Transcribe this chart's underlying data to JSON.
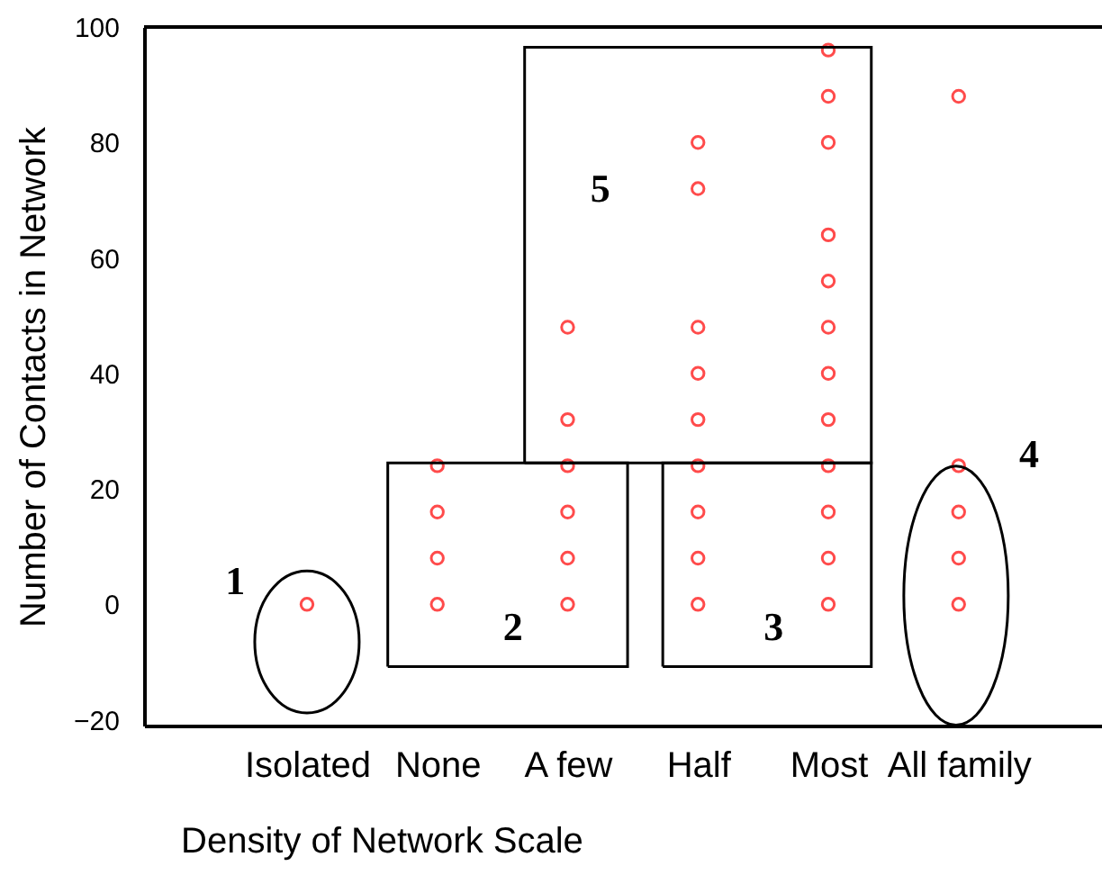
{
  "chart_data": {
    "type": "scatter",
    "xlabel": "Density of Network Scale",
    "ylabel": "Number of Contacts in Network",
    "categories": [
      "Isolated",
      "None",
      "A few",
      "Half",
      "Most",
      "All family"
    ],
    "series": [
      {
        "color": "#ff0000",
        "x": [
          "Isolated",
          "None",
          "None",
          "None",
          "None",
          "A few",
          "A few",
          "A few",
          "A few",
          "A few",
          "A few",
          "Half",
          "Half",
          "Half",
          "Half",
          "Half",
          "Half",
          "Half",
          "Half",
          "Half",
          "Most",
          "Most",
          "Most",
          "Most",
          "Most",
          "Most",
          "Most",
          "Most",
          "Most",
          "Most",
          "Most",
          "Most",
          "All family",
          "All family",
          "All family",
          "All family",
          "All family"
        ],
        "values": [
          0,
          0,
          8,
          16,
          24,
          0,
          8,
          16,
          24,
          32,
          48,
          0,
          8,
          16,
          24,
          32,
          40,
          48,
          72,
          80,
          0,
          8,
          16,
          24,
          32,
          40,
          48,
          56,
          64,
          80,
          88,
          96,
          0,
          8,
          16,
          24,
          88
        ]
      }
    ],
    "ylim": [
      -21,
      100
    ],
    "yticks": [
      -20,
      0,
      20,
      40,
      60,
      80,
      100
    ],
    "grid": false,
    "marker": "circle",
    "annotations": [
      "1",
      "2",
      "3",
      "4",
      "5"
    ]
  }
}
